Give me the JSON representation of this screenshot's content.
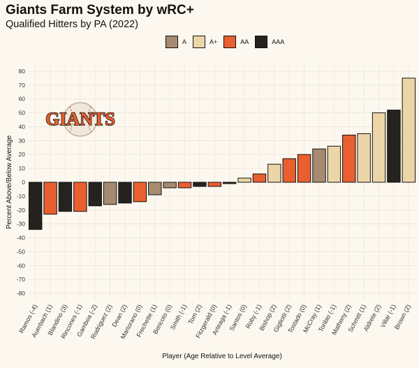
{
  "title": "Giants Farm System by wRC+",
  "subtitle": "Qualified Hitters by PA (2022)",
  "logo_text": "GIANTS",
  "colors": {
    "A": "#a68b70",
    "A+": "#ecd6a7",
    "AA": "#e95f2f",
    "AAA": "#25231f",
    "background": "#fcf8ef",
    "grid": "#ece7dc"
  },
  "legend": [
    {
      "label": "A",
      "color": "#a68b70"
    },
    {
      "label": "A+",
      "color": "#ecd6a7"
    },
    {
      "label": "AA",
      "color": "#e95f2f"
    },
    {
      "label": "AAA",
      "color": "#25231f"
    }
  ],
  "chart_data": {
    "type": "bar",
    "title": "Giants Farm System by wRC+",
    "subtitle": "Qualified Hitters by PA (2022)",
    "xlabel": "Player (Age Relative to Level Average)",
    "ylabel": "Percent Above/Below Average",
    "ylim": [
      -85,
      85
    ],
    "yticks": [
      -80,
      -70,
      -60,
      -50,
      -40,
      -30,
      -20,
      -10,
      0,
      10,
      20,
      30,
      40,
      50,
      60,
      70,
      80
    ],
    "grid": true,
    "legend_position": "top",
    "categories": [
      "Ramos (-4)",
      "Auerbach (1)",
      "Blandino (3)",
      "Rincones (-1)",
      "Gamboa (-2)",
      "Rodriguez (2)",
      "Dean (2)",
      "Martorano (0)",
      "Frechette (1)",
      "Bericoto (0)",
      "Smith (-1)",
      "Tom (2)",
      "Fitzgerald (0)",
      "Arteaga (-1)",
      "Santos (0)",
      "Roby (-1)",
      "Bishop (2)",
      "Gigliotti (2)",
      "Tostado (0)",
      "McCray (1)",
      "Toribio (-1)",
      "Matheny (2)",
      "Schmitt (1)",
      "Aldrete (2)",
      "Villar (-1)",
      "Brown (2)"
    ],
    "values": [
      -34,
      -23,
      -21,
      -21,
      -17,
      -16,
      -15,
      -14,
      -9,
      -4,
      -4,
      -3,
      -3,
      -1,
      3,
      6,
      13,
      17,
      20,
      24,
      26,
      34,
      35,
      50,
      52,
      75
    ],
    "levels": [
      "AAA",
      "AA",
      "AAA",
      "AA",
      "AAA",
      "A",
      "AAA",
      "AA",
      "A",
      "A",
      "AA",
      "AAA",
      "AA",
      "AAA",
      "A+",
      "AA",
      "A+",
      "AA",
      "AA",
      "A",
      "A+",
      "AA",
      "A+",
      "A+",
      "AAA",
      "A+"
    ]
  }
}
